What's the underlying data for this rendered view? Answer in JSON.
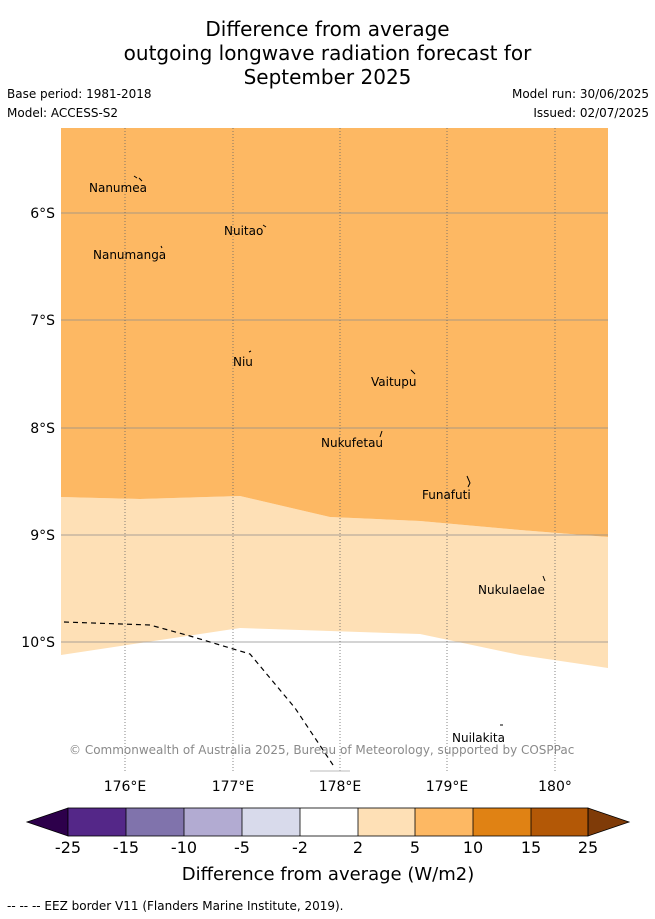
{
  "header": {
    "title_line1": "Difference from average",
    "title_line2": "outgoing longwave radiation forecast for",
    "title_line3": "September 2025",
    "base_period": "Base period: 1981-2018",
    "model": "Model: ACCESS-S2",
    "model_run": "Model run: 30/06/2025",
    "issued": "Issued: 02/07/2025"
  },
  "map": {
    "lon_ticks": [
      "176°E",
      "177°E",
      "178°E",
      "179°E",
      "180°"
    ],
    "lat_ticks": [
      "6°S",
      "7°S",
      "8°S",
      "9°S",
      "10°S"
    ],
    "copyright": "© Commonwealth of Australia 2025, Bureau of Meteorology, supported by COSPPac",
    "islands": [
      {
        "name": "Nanumea"
      },
      {
        "name": "Nuitao"
      },
      {
        "name": "Nanumanga"
      },
      {
        "name": "Niu"
      },
      {
        "name": "Vaitupu"
      },
      {
        "name": "Nukufetau"
      },
      {
        "name": "Funafuti"
      },
      {
        "name": "Nukulaelae"
      },
      {
        "name": "Nuilakita"
      }
    ],
    "fill_colors": {
      "five_to_ten": "#fdb863",
      "two_to_five": "#fee0b6",
      "neutral": "#ffffff"
    }
  },
  "colorbar": {
    "title": "Difference from average (W/m2)",
    "ticks": [
      "-25",
      "-15",
      "-10",
      "-5",
      "-2",
      "2",
      "5",
      "10",
      "15",
      "25"
    ],
    "colors": [
      "#542788",
      "#8073ac",
      "#b2abd2",
      "#d8daeb",
      "#ffffff",
      "#fee0b6",
      "#fdb863",
      "#e08214",
      "#b35806"
    ],
    "extend_low_color": "#2d004b",
    "extend_high_color": "#7f3b08"
  },
  "footer": {
    "legend_text": "-- -- -- EEZ border V11 (Flanders Marine Institute, 2019)."
  }
}
